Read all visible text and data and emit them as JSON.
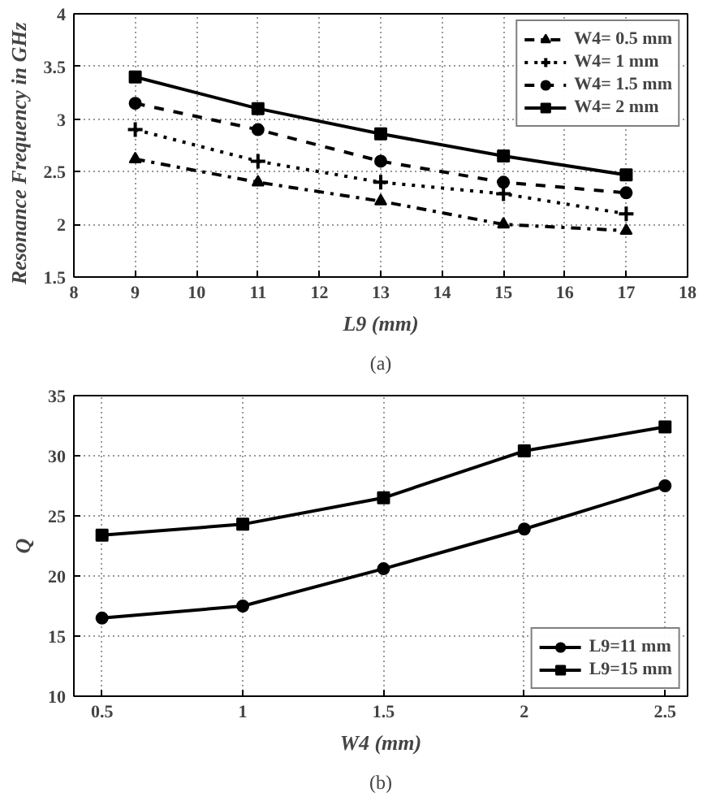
{
  "chart_data": [
    {
      "type": "line",
      "xlabel": "L9 (mm)",
      "ylabel": "Resonance  Frequency  in  GHz",
      "annotations": [
        "(a)"
      ],
      "x": [
        9,
        11,
        13,
        15,
        17
      ],
      "xlim": [
        8,
        18
      ],
      "xticks": [
        8,
        9,
        10,
        11,
        12,
        13,
        14,
        15,
        16,
        17,
        18
      ],
      "ylim": [
        1.5,
        4
      ],
      "yticks": [
        1.5,
        2,
        2.5,
        3,
        3.5,
        4
      ],
      "grid": true,
      "legend": "top right",
      "series": [
        {
          "name": "W4= 0.5 mm",
          "color": "#000000",
          "marker": "triangle",
          "line_style": "dashdot",
          "values": [
            2.62,
            2.4,
            2.22,
            2.0,
            1.94
          ]
        },
        {
          "name": "W4= 1 mm",
          "color": "#000000",
          "marker": "cross",
          "line_style": "dotted",
          "values": [
            2.9,
            2.6,
            2.4,
            2.29,
            2.1
          ]
        },
        {
          "name": "W4= 1.5 mm",
          "color": "#000000",
          "marker": "circle",
          "line_style": "dashed",
          "values": [
            3.15,
            2.9,
            2.6,
            2.4,
            2.3
          ]
        },
        {
          "name": "W4= 2 mm",
          "color": "#000000",
          "marker": "square",
          "line_style": "solid",
          "values": [
            3.4,
            3.1,
            2.86,
            2.65,
            2.47
          ]
        }
      ]
    },
    {
      "type": "line",
      "xlabel": "W4 (mm)",
      "ylabel": "Q",
      "annotations": [
        "(b)"
      ],
      "x": [
        0.5,
        1,
        1.5,
        2,
        2.5
      ],
      "xlim": [
        0.4,
        2.58
      ],
      "xticks": [
        0.5,
        1,
        1.5,
        2,
        2.5
      ],
      "ylim": [
        10,
        35
      ],
      "yticks": [
        10,
        15,
        20,
        25,
        30,
        35
      ],
      "grid": true,
      "legend": "bottom right",
      "series": [
        {
          "name": "L9=11 mm",
          "color": "#000000",
          "marker": "circle",
          "line_style": "solid",
          "values": [
            16.5,
            17.5,
            20.6,
            23.9,
            27.5
          ]
        },
        {
          "name": "L9=15 mm",
          "color": "#000000",
          "marker": "square",
          "line_style": "solid",
          "values": [
            23.4,
            24.3,
            26.5,
            30.4,
            32.4
          ]
        }
      ]
    }
  ]
}
